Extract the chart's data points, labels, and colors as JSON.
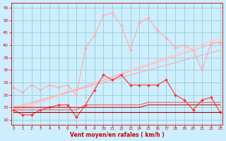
{
  "x": [
    0,
    1,
    2,
    3,
    4,
    5,
    6,
    7,
    8,
    9,
    10,
    11,
    12,
    13,
    14,
    15,
    16,
    17,
    18,
    19,
    20,
    21,
    22,
    23
  ],
  "series": [
    {
      "name": "rafales_high",
      "color": "#ffaaaa",
      "linewidth": 0.8,
      "marker": "D",
      "markersize": 2.0,
      "values": [
        23,
        21,
        24,
        22,
        24,
        23,
        24,
        20,
        39,
        44,
        52,
        53,
        48,
        38,
        49,
        51,
        46,
        43,
        39,
        40,
        38,
        30,
        41,
        41
      ]
    },
    {
      "name": "linear_lightest",
      "color": "#ffcccc",
      "linewidth": 1.0,
      "marker": null,
      "markersize": 0,
      "values": [
        13,
        14.3,
        15.6,
        16.9,
        18.2,
        19.5,
        20.8,
        22.1,
        23.4,
        24.7,
        26,
        27.3,
        28.6,
        29.9,
        31.2,
        32.5,
        33.8,
        35.1,
        36.4,
        37.7,
        39,
        40.3,
        41.6,
        42.9
      ]
    },
    {
      "name": "linear_light",
      "color": "#ffbbbb",
      "linewidth": 1.0,
      "marker": null,
      "markersize": 0,
      "values": [
        14,
        15.2,
        16.4,
        17.6,
        18.8,
        20,
        21.2,
        22.4,
        23.6,
        24.8,
        26,
        27.2,
        28.4,
        29.6,
        30.8,
        32,
        33.2,
        34.4,
        35.6,
        36.8,
        38,
        39.2,
        40.4,
        41.6
      ]
    },
    {
      "name": "linear_medium",
      "color": "#ffaaaa",
      "linewidth": 0.8,
      "marker": null,
      "markersize": 0,
      "values": [
        15,
        16,
        17,
        18,
        19,
        20,
        21,
        22,
        23,
        24,
        25,
        26,
        27,
        28,
        29,
        30,
        31,
        32,
        33,
        34,
        35,
        36,
        37,
        38
      ]
    },
    {
      "name": "vent_moyen",
      "color": "#ff3333",
      "linewidth": 0.8,
      "marker": "D",
      "markersize": 2.0,
      "values": [
        14,
        12,
        12,
        14,
        15,
        16,
        16,
        11,
        16,
        22,
        28,
        26,
        28,
        24,
        24,
        24,
        24,
        26,
        20,
        18,
        14,
        18,
        19,
        13
      ]
    },
    {
      "name": "flat_medium",
      "color": "#ff5555",
      "linewidth": 0.8,
      "marker": null,
      "markersize": 0,
      "values": [
        14,
        14,
        14,
        14,
        14,
        14,
        14,
        14,
        16,
        16,
        16,
        16,
        16,
        16,
        16,
        17,
        17,
        17,
        17,
        17,
        17,
        17,
        17,
        17
      ]
    },
    {
      "name": "flat_upper",
      "color": "#cc1111",
      "linewidth": 0.8,
      "marker": null,
      "markersize": 0,
      "values": [
        15,
        15,
        15,
        15,
        15,
        15,
        15,
        15,
        15,
        15,
        15,
        15,
        15,
        15,
        15,
        16,
        16,
        16,
        16,
        16,
        16,
        16,
        16,
        16
      ]
    },
    {
      "name": "flat_lower",
      "color": "#aa0000",
      "linewidth": 0.8,
      "marker": null,
      "markersize": 0,
      "values": [
        13,
        13,
        13,
        13,
        13,
        13,
        13,
        13,
        13,
        13,
        13,
        13,
        13,
        13,
        13,
        13,
        13,
        13,
        13,
        13,
        13,
        13,
        13,
        13
      ]
    }
  ],
  "xlim": [
    -0.3,
    23.3
  ],
  "ylim": [
    8,
    57
  ],
  "yticks": [
    10,
    15,
    20,
    25,
    30,
    35,
    40,
    45,
    50,
    55
  ],
  "xticks": [
    0,
    1,
    2,
    3,
    4,
    5,
    6,
    7,
    8,
    9,
    10,
    11,
    12,
    13,
    14,
    15,
    16,
    17,
    18,
    19,
    20,
    21,
    22,
    23
  ],
  "xlabel": "Vent moyen/en rafales ( km/h )",
  "background_color": "#cceeff",
  "grid_color": "#99cccc",
  "tick_color": "#cc0000",
  "label_color": "#cc0000"
}
